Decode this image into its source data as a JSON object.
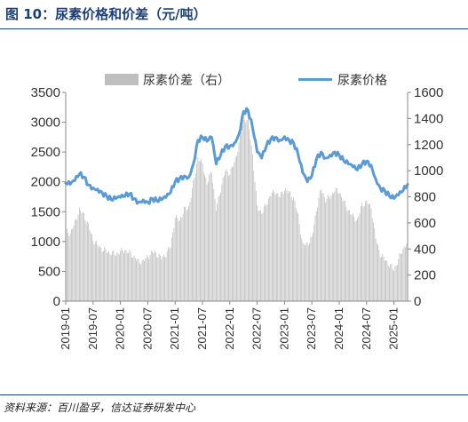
{
  "figure": {
    "title": "图 10：尿素价格和价差（元/吨）",
    "source": "资料来源：百川盈孚，信达证券研发中心"
  },
  "chart_data": {
    "type": "bar+line",
    "legend": [
      "尿素价差（右）",
      "尿素价格"
    ],
    "legend_position": "top",
    "left_axis": {
      "ticks": [
        "0",
        "500",
        "1000",
        "1500",
        "2000",
        "2500",
        "3000",
        "3500"
      ],
      "ylim": [
        0,
        3500
      ]
    },
    "right_axis": {
      "ticks": [
        "0",
        "200",
        "400",
        "600",
        "800",
        "1000",
        "1200",
        "1400",
        "1600"
      ],
      "ylim": [
        0,
        1600
      ]
    },
    "x_ticks": [
      "2019-01",
      "2019-07",
      "2020-01",
      "2020-07",
      "2021-01",
      "2021-07",
      "2022-01",
      "2022-07",
      "2023-01",
      "2023-07",
      "2024-01",
      "2024-07",
      "2025-01"
    ],
    "x_range": [
      "2019-01",
      "2025-04"
    ],
    "series": [
      {
        "name": "尿素价格",
        "axis": "left",
        "style": "line",
        "color": "#5b9bd5",
        "points": [
          [
            "2019-01",
            1980
          ],
          [
            "2019-02",
            1960
          ],
          [
            "2019-03",
            2020
          ],
          [
            "2019-04",
            2130
          ],
          [
            "2019-05",
            2080
          ],
          [
            "2019-06",
            1950
          ],
          [
            "2019-07",
            1900
          ],
          [
            "2019-08",
            1880
          ],
          [
            "2019-09",
            1820
          ],
          [
            "2019-10",
            1760
          ],
          [
            "2019-11",
            1700
          ],
          [
            "2019-12",
            1720
          ],
          [
            "2020-01",
            1740
          ],
          [
            "2020-02",
            1760
          ],
          [
            "2020-03",
            1800
          ],
          [
            "2020-04",
            1720
          ],
          [
            "2020-05",
            1660
          ],
          [
            "2020-06",
            1700
          ],
          [
            "2020-07",
            1660
          ],
          [
            "2020-08",
            1720
          ],
          [
            "2020-09",
            1680
          ],
          [
            "2020-10",
            1700
          ],
          [
            "2020-11",
            1740
          ],
          [
            "2020-12",
            1820
          ],
          [
            "2021-01",
            2000
          ],
          [
            "2021-02",
            2060
          ],
          [
            "2021-03",
            2100
          ],
          [
            "2021-04",
            2080
          ],
          [
            "2021-05",
            2300
          ],
          [
            "2021-06",
            2700
          ],
          [
            "2021-07",
            2750
          ],
          [
            "2021-08",
            2680
          ],
          [
            "2021-09",
            2750
          ],
          [
            "2021-10",
            2300
          ],
          [
            "2021-11",
            2450
          ],
          [
            "2021-12",
            2600
          ],
          [
            "2022-01",
            2600
          ],
          [
            "2022-02",
            2650
          ],
          [
            "2022-03",
            2800
          ],
          [
            "2022-04",
            3180
          ],
          [
            "2022-05",
            3200
          ],
          [
            "2022-06",
            2900
          ],
          [
            "2022-07",
            2500
          ],
          [
            "2022-08",
            2400
          ],
          [
            "2022-09",
            2600
          ],
          [
            "2022-10",
            2720
          ],
          [
            "2022-11",
            2750
          ],
          [
            "2022-12",
            2700
          ],
          [
            "2023-01",
            2760
          ],
          [
            "2023-02",
            2700
          ],
          [
            "2023-03",
            2650
          ],
          [
            "2023-04",
            2450
          ],
          [
            "2023-05",
            2150
          ],
          [
            "2023-06",
            2000
          ],
          [
            "2023-07",
            2100
          ],
          [
            "2023-08",
            2380
          ],
          [
            "2023-09",
            2500
          ],
          [
            "2023-10",
            2400
          ],
          [
            "2023-11",
            2450
          ],
          [
            "2023-12",
            2500
          ],
          [
            "2024-01",
            2450
          ],
          [
            "2024-02",
            2350
          ],
          [
            "2024-03",
            2300
          ],
          [
            "2024-04",
            2250
          ],
          [
            "2024-05",
            2200
          ],
          [
            "2024-06",
            2300
          ],
          [
            "2024-07",
            2350
          ],
          [
            "2024-08",
            2280
          ],
          [
            "2024-09",
            2050
          ],
          [
            "2024-10",
            1900
          ],
          [
            "2024-11",
            1850
          ],
          [
            "2024-12",
            1760
          ],
          [
            "2025-01",
            1720
          ],
          [
            "2025-02",
            1780
          ],
          [
            "2025-03",
            1850
          ],
          [
            "2025-04",
            1960
          ]
        ]
      },
      {
        "name": "尿素价差（右）",
        "axis": "right",
        "style": "bar",
        "color": "#bfbfbf",
        "monthly_values": [
          540,
          520,
          600,
          700,
          660,
          580,
          470,
          430,
          400,
          380,
          370,
          360,
          380,
          390,
          370,
          340,
          300,
          310,
          340,
          380,
          360,
          330,
          360,
          420,
          640,
          620,
          700,
          720,
          900,
          1100,
          1050,
          900,
          1000,
          700,
          860,
          1000,
          980,
          1060,
          1200,
          1400,
          1380,
          1120,
          720,
          680,
          740,
          820,
          840,
          800,
          860,
          830,
          790,
          650,
          430,
          440,
          480,
          700,
          860,
          780,
          800,
          850,
          840,
          760,
          700,
          650,
          620,
          740,
          760,
          720,
          480,
          360,
          320,
          280,
          240,
          320,
          400,
          460
        ]
      }
    ]
  }
}
